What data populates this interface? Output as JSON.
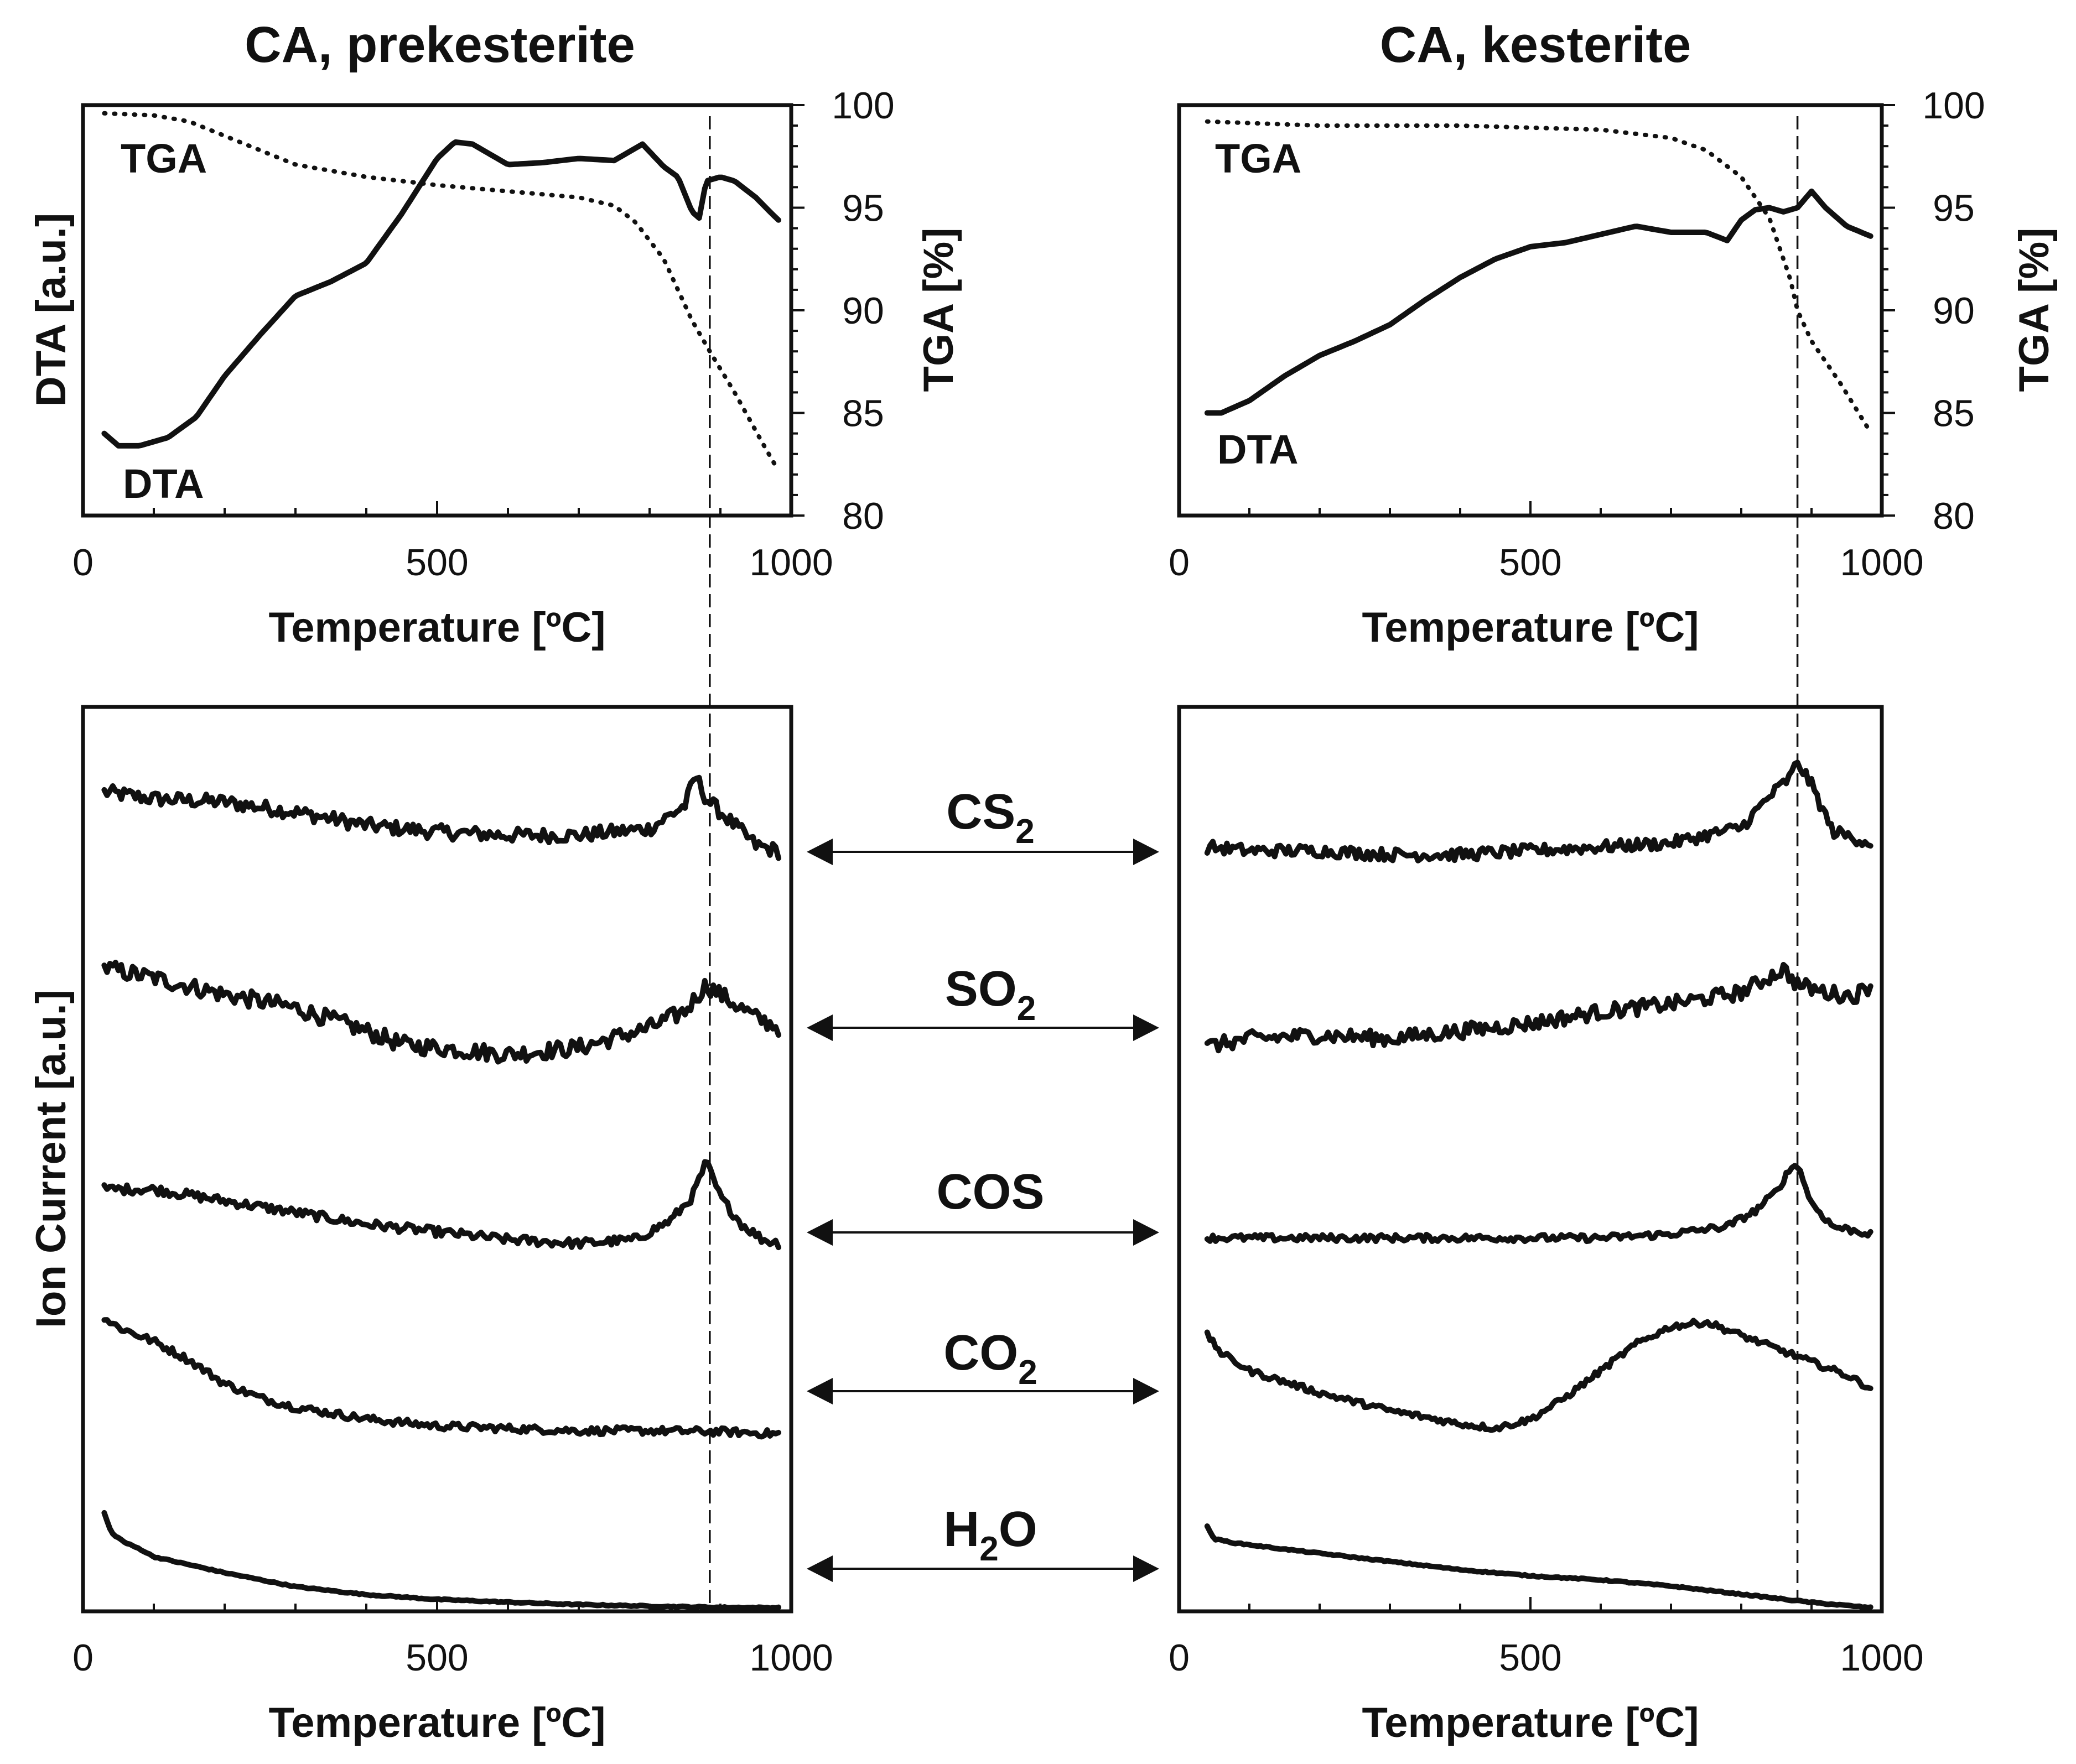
{
  "chart_data": [
    {
      "id": "prek-top",
      "type": "line",
      "title": "CA, prekesterite",
      "xlabel": "Temperature [ºC]",
      "ylabel_left": "DTA [a.u.]",
      "ylabel_right": "TGA [%]",
      "xlim": [
        0,
        1000
      ],
      "ylim_right": [
        80,
        100
      ],
      "xticks": [
        "0",
        "500",
        "1000"
      ],
      "yticks_right": [
        "100",
        "95",
        "90",
        "85",
        "80"
      ],
      "reference_temperature": 885,
      "series": [
        {
          "name": "TGA",
          "style": "dotted",
          "axis": "right",
          "x": [
            30,
            100,
            150,
            200,
            250,
            300,
            400,
            500,
            600,
            700,
            750,
            780,
            820,
            860,
            885,
            920,
            960,
            985
          ],
          "y": [
            99.6,
            99.5,
            99.2,
            98.5,
            97.8,
            97.1,
            96.5,
            96.1,
            95.8,
            95.5,
            95.1,
            94.3,
            92.5,
            89.5,
            88.0,
            86.0,
            83.5,
            82.0
          ]
        },
        {
          "name": "DTA",
          "style": "solid",
          "axis": "left",
          "x": [
            30,
            50,
            80,
            120,
            160,
            200,
            250,
            300,
            350,
            400,
            450,
            500,
            525,
            550,
            600,
            650,
            700,
            750,
            790,
            820,
            840,
            860,
            870,
            880,
            900,
            920,
            950,
            970,
            985
          ],
          "y": [
            84.0,
            83.4,
            83.4,
            83.8,
            84.8,
            86.8,
            88.8,
            90.7,
            91.4,
            92.3,
            94.7,
            97.4,
            98.2,
            98.1,
            97.1,
            97.2,
            97.4,
            97.3,
            98.1,
            97.0,
            96.5,
            94.8,
            94.5,
            96.3,
            96.5,
            96.3,
            95.5,
            94.8,
            94.3
          ]
        }
      ],
      "labels": [
        "TGA",
        "DTA"
      ]
    },
    {
      "id": "kest-top",
      "type": "line",
      "title": "CA, kesterite",
      "xlabel": "Temperature [ºC]",
      "ylabel_right": "TGA [%]",
      "xlim": [
        0,
        1000
      ],
      "ylim_right": [
        80,
        100
      ],
      "xticks": [
        "0",
        "500",
        "1000"
      ],
      "yticks_right": [
        "100",
        "95",
        "90",
        "85",
        "80"
      ],
      "reference_temperature": 880,
      "series": [
        {
          "name": "TGA",
          "style": "dotted",
          "axis": "right",
          "x": [
            40,
            200,
            400,
            600,
            700,
            750,
            800,
            840,
            870,
            880,
            900,
            940,
            985
          ],
          "y": [
            99.2,
            99.0,
            99.0,
            98.8,
            98.4,
            97.8,
            96.5,
            94.5,
            91.5,
            90.0,
            88.5,
            86.5,
            84.0
          ]
        },
        {
          "name": "DTA",
          "style": "solid",
          "axis": "left",
          "x": [
            40,
            60,
            100,
            150,
            200,
            250,
            300,
            350,
            400,
            450,
            500,
            550,
            600,
            650,
            700,
            750,
            780,
            800,
            820,
            840,
            860,
            880,
            900,
            920,
            950,
            985
          ],
          "y": [
            85.0,
            85.0,
            85.6,
            86.8,
            87.8,
            88.5,
            89.3,
            90.5,
            91.6,
            92.5,
            93.1,
            93.3,
            93.7,
            94.1,
            93.8,
            93.8,
            93.4,
            94.4,
            94.9,
            95.0,
            94.8,
            95.0,
            95.8,
            95.0,
            94.1,
            93.6
          ]
        }
      ],
      "labels": [
        "TGA",
        "DTA"
      ]
    },
    {
      "id": "prek-bottom",
      "type": "line",
      "xlabel": "Temperature [ºC]",
      "ylabel": "Ion Current [a.u.]",
      "xlim": [
        0,
        1000
      ],
      "xticks": [
        "0",
        "500",
        "1000"
      ],
      "reference_temperature": 885,
      "series": [
        {
          "name": "CS2",
          "noise": 2.2,
          "x": [
            30,
            100,
            200,
            300,
            400,
            500,
            600,
            700,
            800,
            850,
            865,
            880,
            900,
            950,
            985
          ],
          "y": [
            28,
            26,
            25,
            22,
            18,
            16,
            15,
            15,
            17,
            24,
            33,
            26,
            22,
            12,
            10
          ]
        },
        {
          "name": "SO2",
          "noise": 2.6,
          "x": [
            30,
            100,
            200,
            300,
            400,
            450,
            500,
            600,
            700,
            800,
            850,
            880,
            900,
            950,
            985
          ],
          "y": [
            30,
            27,
            22,
            18,
            11,
            7,
            6,
            4,
            6,
            12,
            17,
            25,
            22,
            15,
            12
          ]
        },
        {
          "name": "COS",
          "noise": 1.2,
          "x": [
            30,
            100,
            200,
            300,
            400,
            500,
            600,
            700,
            780,
            830,
            860,
            880,
            900,
            930,
            960,
            985
          ],
          "y": [
            15,
            15,
            12,
            9,
            6,
            4,
            2,
            1,
            2,
            7,
            13,
            22,
            13,
            6,
            2,
            1
          ]
        },
        {
          "name": "CO2",
          "noise": 0.8,
          "x": [
            30,
            50,
            100,
            150,
            200,
            250,
            300,
            400,
            500,
            600,
            700,
            800,
            900,
            985
          ],
          "y": [
            25,
            23,
            20,
            16,
            11,
            8,
            6,
            3.5,
            2,
            1.5,
            1,
            1,
            0.8,
            0.3
          ]
        },
        {
          "name": "H2O",
          "noise": 0.15,
          "x": [
            30,
            40,
            60,
            80,
            100,
            150,
            200,
            300,
            400,
            500,
            600,
            700,
            800,
            900,
            985
          ],
          "y": [
            24,
            19,
            16.5,
            15,
            13,
            11,
            9,
            5.5,
            3.5,
            2.3,
            1.6,
            1.0,
            0.6,
            0.3,
            0.2
          ]
        }
      ]
    },
    {
      "id": "kest-bottom",
      "type": "line",
      "xlabel": "Temperature [ºC]",
      "xlim": [
        0,
        1000
      ],
      "xticks": [
        "0",
        "500",
        "1000"
      ],
      "reference_temperature": 880,
      "series": [
        {
          "name": "CS2",
          "noise": 1.6,
          "x": [
            40,
            100,
            200,
            300,
            400,
            500,
            600,
            700,
            800,
            840,
            870,
            880,
            900,
            930,
            985
          ],
          "y": [
            12,
            11,
            11,
            10,
            10,
            11,
            12,
            13,
            17,
            25,
            30,
            34,
            28,
            16,
            13
          ]
        },
        {
          "name": "SO2",
          "noise": 2.0,
          "x": [
            40,
            100,
            200,
            300,
            400,
            500,
            600,
            700,
            800,
            860,
            880,
            920,
            960,
            985
          ],
          "y": [
            4,
            6,
            7,
            6,
            8,
            10,
            13,
            15,
            18,
            24,
            20,
            18,
            17,
            20
          ]
        },
        {
          "name": "COS",
          "noise": 0.9,
          "x": [
            40,
            100,
            200,
            300,
            400,
            500,
            600,
            700,
            780,
            820,
            850,
            870,
            880,
            900,
            930,
            985
          ],
          "y": [
            1,
            1,
            1,
            1,
            1,
            1,
            1,
            2,
            4,
            8,
            13,
            19,
            20,
            10,
            4,
            2
          ]
        },
        {
          "name": "CO2",
          "noise": 0.7,
          "x": [
            40,
            60,
            100,
            200,
            300,
            400,
            450,
            500,
            550,
            600,
            650,
            700,
            750,
            800,
            850,
            900,
            950,
            985
          ],
          "y": [
            22,
            18,
            14,
            9,
            5,
            2,
            1,
            3,
            8,
            14,
            20,
            24,
            25,
            22,
            19,
            16,
            13,
            10
          ]
        },
        {
          "name": "H2O",
          "noise": 0.15,
          "x": [
            40,
            50,
            80,
            150,
            200,
            300,
            400,
            500,
            600,
            700,
            800,
            900,
            985
          ],
          "y": [
            20,
            17,
            16,
            14.5,
            13.5,
            11.5,
            9.5,
            8.0,
            7.0,
            5.5,
            3.5,
            1.5,
            0.2
          ]
        }
      ]
    }
  ],
  "gas_labels": {
    "cs2": {
      "base": "CS",
      "sub": "2"
    },
    "so2": {
      "base": "SO",
      "sub": "2"
    },
    "cos": {
      "base": "COS",
      "sub": ""
    },
    "co2": {
      "base": "CO",
      "sub": "2"
    },
    "h2o": {
      "base": "H",
      "sub": "2",
      "tail": "O"
    }
  }
}
